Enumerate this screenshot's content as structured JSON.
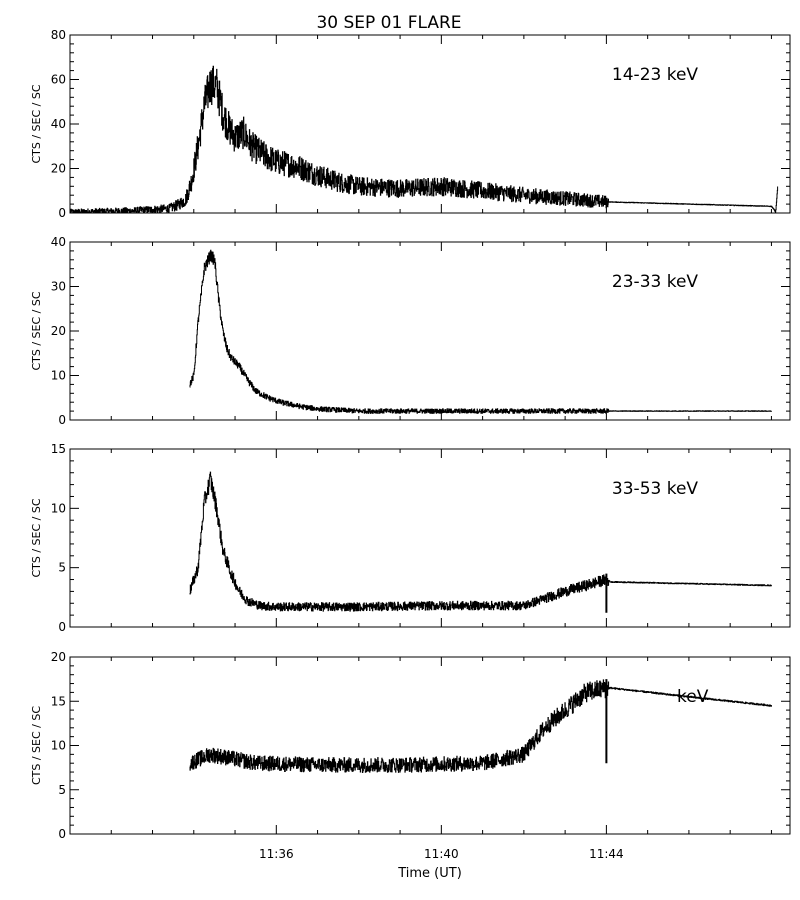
{
  "chart_data": {
    "type": "line",
    "title": "30 SEP 01 FLARE",
    "xlabel": "Time (UT)",
    "x_tick_labels": [
      "11:36",
      "11:40",
      "11:44"
    ],
    "x_ticks_minutes": [
      -2,
      -1,
      0,
      1,
      2,
      3,
      4,
      5,
      6,
      7,
      8,
      9,
      10,
      11,
      12,
      13,
      14
    ],
    "x_tick_label_minutes": [
      2,
      6,
      10
    ],
    "xlim_minutes_after_11_34": [
      -3,
      14.45
    ],
    "grid": false,
    "line_color": "#000000",
    "panels": [
      {
        "label": "14-23 keV",
        "ylabel": "CTS / SEC / SC",
        "ylim": [
          0,
          80
        ],
        "yticks": [
          0,
          20,
          40,
          60,
          80
        ],
        "noise": 1.2,
        "t": [
          -3.0,
          -1.5,
          -0.6,
          -0.4,
          -0.2,
          -0.05,
          0.1,
          0.25,
          0.4,
          0.55,
          0.7,
          0.85,
          1.0,
          1.2,
          1.4,
          1.7,
          2.0,
          2.5,
          3.0,
          3.5,
          4.0,
          5.0,
          6.0,
          7.0,
          8.0,
          9.0,
          10.0,
          12.0,
          14.0,
          14.1,
          14.15
        ],
        "y": [
          0.5,
          1.0,
          2.0,
          3.5,
          6.0,
          15.0,
          30.0,
          48.0,
          58.0,
          57.0,
          45.0,
          38.0,
          34.0,
          36.0,
          30.0,
          26.0,
          23.0,
          21.0,
          17.0,
          14.0,
          12.0,
          11.0,
          12.0,
          10.0,
          8.0,
          6.5,
          5.0,
          4.0,
          3.0,
          0.5,
          12.0
        ]
      },
      {
        "label": "23-33 keV",
        "ylabel": "CTS / SEC / SC",
        "ylim": [
          0,
          40
        ],
        "yticks": [
          0,
          10,
          20,
          30,
          40
        ],
        "noise": 0.6,
        "t": [
          -0.1,
          0.0,
          0.1,
          0.25,
          0.4,
          0.5,
          0.6,
          0.7,
          0.8,
          0.9,
          1.1,
          1.3,
          1.5,
          1.8,
          2.1,
          2.6,
          3.0,
          4.0,
          6.0,
          8.0,
          10.0,
          12.0,
          14.0
        ],
        "y": [
          8.0,
          10.0,
          22.0,
          34.0,
          37.0,
          36.0,
          27.0,
          20.0,
          16.0,
          14.0,
          12.0,
          9.0,
          6.5,
          5.0,
          4.0,
          3.0,
          2.5,
          2.0,
          2.0,
          2.0,
          2.0,
          2.0,
          2.0
        ]
      },
      {
        "label": "33-53 keV",
        "ylabel": "CTS / SEC / SC",
        "ylim": [
          0,
          15
        ],
        "yticks": [
          0,
          5,
          10,
          15
        ],
        "noise": 0.35,
        "t": [
          -0.1,
          0.1,
          0.25,
          0.4,
          0.55,
          0.7,
          0.9,
          1.1,
          1.3,
          1.6,
          2.0,
          4.0,
          6.0,
          8.0,
          9.0,
          10.0,
          10.1,
          14.0
        ],
        "y": [
          3.0,
          5.0,
          10.5,
          12.5,
          10.0,
          6.5,
          4.5,
          3.0,
          2.2,
          1.8,
          1.7,
          1.7,
          1.8,
          1.8,
          3.0,
          4.0,
          3.8,
          3.5
        ]
      },
      {
        "label": "keV",
        "ylabel": "CTS / SEC / SC",
        "ylim": [
          0,
          20
        ],
        "yticks": [
          0,
          5,
          10,
          15,
          20
        ],
        "noise": 0.7,
        "t": [
          -0.1,
          0.4,
          1.5,
          3.0,
          5.0,
          7.0,
          8.0,
          8.5,
          9.5,
          10.0,
          10.1,
          12.0,
          14.0
        ],
        "y": [
          8.0,
          9.0,
          8.0,
          7.8,
          7.8,
          8.0,
          9.0,
          12.0,
          16.0,
          16.5,
          16.5,
          15.5,
          14.5
        ]
      }
    ]
  }
}
